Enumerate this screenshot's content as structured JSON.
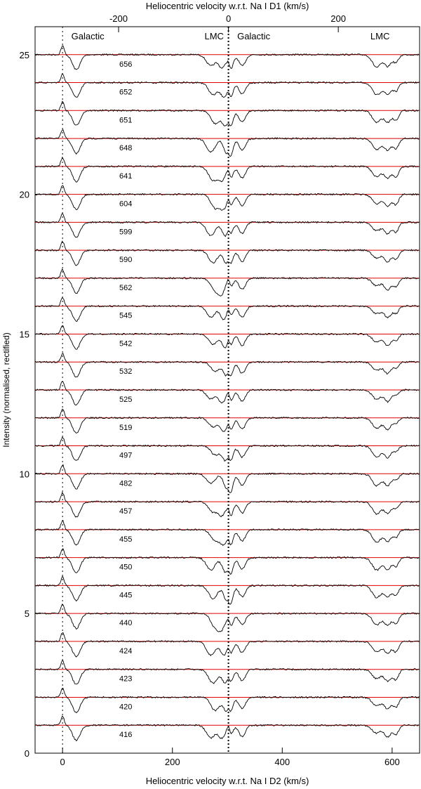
{
  "chart_data": {
    "type": "line",
    "title": "",
    "xlabel": "Heliocentric velocity w.r.t. Na I D2 (km/s)",
    "x2label": "Heliocentric velocity w.r.t. Na I D1 (km/s)",
    "ylabel": "Intensity (normalised, rectified)",
    "xlim": [
      -50,
      650
    ],
    "x2lim": [
      -352,
      348
    ],
    "ylim": [
      0,
      26
    ],
    "xticks": [
      0,
      200,
      400,
      600
    ],
    "x2ticks": [
      -200,
      0,
      200
    ],
    "yticks": [
      0,
      5,
      10,
      15,
      20,
      25
    ],
    "grid": false,
    "annotations": [
      {
        "text": "Galactic",
        "x": 46
      },
      {
        "text": "LMC",
        "x": 276
      },
      {
        "text": "Galactic",
        "x": 348
      },
      {
        "text": "LMC",
        "x": 578
      }
    ],
    "vertical_markers": [
      {
        "x": 0,
        "style": "dotted"
      },
      {
        "x": 302,
        "style": "dotted-bold"
      }
    ],
    "series": [
      {
        "name": "656",
        "offset": 25
      },
      {
        "name": "652",
        "offset": 24
      },
      {
        "name": "651",
        "offset": 23
      },
      {
        "name": "648",
        "offset": 22
      },
      {
        "name": "641",
        "offset": 21
      },
      {
        "name": "604",
        "offset": 20
      },
      {
        "name": "599",
        "offset": 19
      },
      {
        "name": "590",
        "offset": 18
      },
      {
        "name": "562",
        "offset": 17
      },
      {
        "name": "545",
        "offset": 16
      },
      {
        "name": "542",
        "offset": 15
      },
      {
        "name": "532",
        "offset": 14
      },
      {
        "name": "525",
        "offset": 13
      },
      {
        "name": "519",
        "offset": 12
      },
      {
        "name": "497",
        "offset": 11
      },
      {
        "name": "482",
        "offset": 10
      },
      {
        "name": "457",
        "offset": 9
      },
      {
        "name": "455",
        "offset": 8
      },
      {
        "name": "450",
        "offset": 7
      },
      {
        "name": "445",
        "offset": 6
      },
      {
        "name": "440",
        "offset": 5
      },
      {
        "name": "424",
        "offset": 4
      },
      {
        "name": "423",
        "offset": 3
      },
      {
        "name": "420",
        "offset": 2
      },
      {
        "name": "416",
        "offset": 1
      }
    ],
    "colors": {
      "spectrum": "#000000",
      "continuum": "#e00000",
      "fit": "#1f7a1f"
    }
  }
}
